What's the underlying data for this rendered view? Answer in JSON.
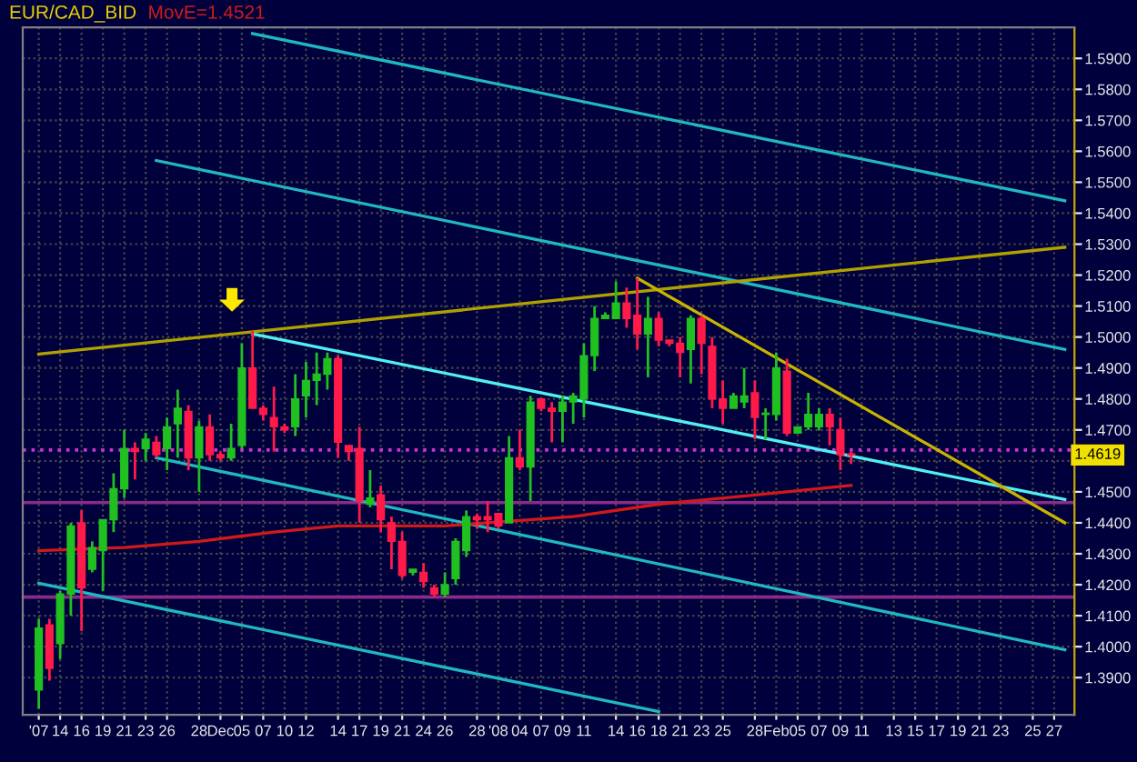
{
  "chart_data": {
    "type": "candlestick",
    "title": "EUR/CAD_BID",
    "categories": [
      "'07",
      null,
      "14",
      null,
      "16",
      null,
      "19",
      null,
      "21",
      null,
      "23",
      null,
      "26",
      null,
      null,
      "28",
      null,
      "Dec",
      null,
      "05",
      null,
      "07",
      null,
      "10",
      null,
      "12",
      null,
      null,
      "14",
      null,
      "17",
      null,
      "19",
      null,
      "21",
      null,
      "24",
      null,
      "26",
      null,
      null,
      "28",
      null,
      "'08",
      null,
      "04",
      null,
      "07",
      null,
      "09",
      null,
      "11",
      null,
      null,
      "14",
      null,
      "16",
      null,
      "18",
      null,
      "21",
      null,
      "23",
      null,
      "25",
      null,
      null,
      "28",
      null,
      "Feb",
      null,
      "05",
      null,
      "07",
      null,
      "09",
      null,
      "11",
      null,
      null,
      "13",
      null,
      "15",
      null,
      "17",
      null,
      "19",
      null,
      "21",
      null,
      "23",
      null,
      null,
      "25",
      null,
      "27",
      null
    ],
    "ylim": [
      1.378,
      1.6
    ],
    "yticks": [
      {
        "value": 1.39,
        "label": "1.3900"
      },
      {
        "value": 1.4,
        "label": "1.4000"
      },
      {
        "value": 1.41,
        "label": "1.4100"
      },
      {
        "value": 1.42,
        "label": "1.4200"
      },
      {
        "value": 1.43,
        "label": "1.4300"
      },
      {
        "value": 1.44,
        "label": "1.4400"
      },
      {
        "value": 1.45,
        "label": "1.4500"
      },
      {
        "value": 1.46,
        "label": null
      },
      {
        "value": 1.47,
        "label": "1.4700"
      },
      {
        "value": 1.48,
        "label": "1.4800"
      },
      {
        "value": 1.49,
        "label": "1.4900"
      },
      {
        "value": 1.5,
        "label": "1.5000"
      },
      {
        "value": 1.51,
        "label": "1.5100"
      },
      {
        "value": 1.52,
        "label": "1.5200"
      },
      {
        "value": 1.53,
        "label": "1.5300"
      },
      {
        "value": 1.54,
        "label": "1.5400"
      },
      {
        "value": 1.55,
        "label": "1.5500"
      },
      {
        "value": 1.56,
        "label": "1.5600"
      },
      {
        "value": 1.57,
        "label": "1.5700"
      },
      {
        "value": 1.58,
        "label": "1.5800"
      },
      {
        "value": 1.59,
        "label": "1.5900"
      }
    ],
    "grid": true,
    "ref_lines": [
      {
        "axis": "y",
        "value": 1.4635,
        "color": "#cc33cc",
        "line_style": "dotted"
      },
      {
        "axis": "y",
        "value": 1.4465,
        "color": "#8a2a8a",
        "line_style": "solid"
      },
      {
        "axis": "y",
        "value": 1.416,
        "color": "#8a2a8a",
        "line_style": "solid"
      }
    ],
    "annotations": [
      {
        "text": "1.4619",
        "y": 1.4619
      }
    ],
    "series": [
      {
        "type": "line",
        "color": "#20b8c0",
        "values": [
          null,
          null,
          null,
          null,
          null,
          null,
          null,
          null,
          null,
          null,
          null,
          null,
          null,
          null,
          null,
          null,
          null,
          null,
          null,
          null,
          1.598,
          null,
          null,
          null,
          null,
          null,
          null,
          null,
          null,
          null,
          null,
          null,
          null,
          null,
          null,
          null,
          null,
          null,
          null,
          null,
          null,
          null,
          null,
          null,
          null,
          null,
          null,
          null,
          null,
          null,
          null,
          null,
          null,
          null,
          null,
          null,
          null,
          null,
          null,
          null,
          null,
          null,
          null,
          null,
          null,
          null,
          null,
          null,
          null,
          null,
          null,
          null,
          null,
          null,
          null,
          null,
          null,
          null,
          null,
          null,
          null,
          null,
          null,
          null,
          null,
          null,
          null,
          null,
          null,
          null,
          null,
          null,
          null,
          null,
          null,
          null,
          1.544
        ]
      },
      {
        "type": "line",
        "color": "#20b8c0",
        "values": [
          null,
          null,
          null,
          null,
          null,
          null,
          null,
          null,
          null,
          null,
          null,
          1.557,
          null,
          null,
          null,
          null,
          null,
          null,
          null,
          null,
          null,
          null,
          null,
          null,
          null,
          null,
          null,
          null,
          null,
          null,
          null,
          null,
          null,
          null,
          null,
          null,
          null,
          null,
          null,
          null,
          null,
          null,
          null,
          null,
          null,
          null,
          null,
          null,
          null,
          null,
          null,
          null,
          null,
          null,
          null,
          null,
          null,
          null,
          null,
          null,
          null,
          null,
          null,
          null,
          null,
          null,
          null,
          null,
          null,
          null,
          null,
          null,
          null,
          null,
          null,
          null,
          null,
          null,
          null,
          null,
          null,
          null,
          null,
          null,
          null,
          null,
          null,
          null,
          null,
          null,
          null,
          null,
          null,
          null,
          null,
          null,
          1.496
        ]
      },
      {
        "type": "line",
        "color": "#50f0f0",
        "values": [
          null,
          null,
          null,
          null,
          null,
          null,
          null,
          null,
          null,
          null,
          null,
          null,
          null,
          null,
          null,
          null,
          null,
          null,
          null,
          null,
          1.501,
          null,
          null,
          null,
          null,
          null,
          null,
          null,
          null,
          null,
          null,
          null,
          null,
          null,
          null,
          null,
          null,
          null,
          null,
          null,
          null,
          null,
          null,
          null,
          null,
          null,
          null,
          null,
          null,
          null,
          null,
          null,
          null,
          null,
          null,
          null,
          null,
          null,
          null,
          null,
          null,
          null,
          null,
          null,
          null,
          null,
          null,
          null,
          null,
          null,
          null,
          null,
          null,
          null,
          null,
          null,
          null,
          null,
          null,
          null,
          null,
          null,
          null,
          null,
          null,
          null,
          null,
          null,
          null,
          null,
          null,
          null,
          null,
          null,
          null,
          null,
          1.4475
        ]
      },
      {
        "type": "line",
        "color": "#20b8c0",
        "values": [
          null,
          null,
          null,
          null,
          null,
          null,
          null,
          null,
          null,
          null,
          null,
          1.461,
          null,
          null,
          null,
          null,
          null,
          null,
          null,
          null,
          null,
          null,
          null,
          null,
          null,
          null,
          null,
          null,
          null,
          null,
          null,
          null,
          null,
          null,
          null,
          null,
          null,
          null,
          null,
          null,
          null,
          null,
          null,
          null,
          null,
          null,
          null,
          null,
          null,
          null,
          null,
          null,
          null,
          null,
          null,
          null,
          null,
          null,
          null,
          null,
          null,
          null,
          null,
          null,
          null,
          null,
          null,
          null,
          null,
          null,
          null,
          null,
          null,
          null,
          null,
          null,
          null,
          null,
          null,
          null,
          null,
          null,
          null,
          null,
          null,
          null,
          null,
          null,
          null,
          null,
          null,
          null,
          null,
          null,
          null,
          null,
          1.399
        ]
      },
      {
        "type": "line",
        "color": "#20b8c0",
        "values": [
          1.4205,
          null,
          null,
          null,
          null,
          null,
          null,
          null,
          null,
          null,
          null,
          null,
          null,
          null,
          null,
          null,
          null,
          null,
          null,
          null,
          null,
          null,
          null,
          null,
          null,
          null,
          null,
          null,
          null,
          null,
          null,
          null,
          null,
          null,
          null,
          null,
          null,
          null,
          null,
          null,
          null,
          null,
          null,
          null,
          null,
          null,
          null,
          null,
          null,
          null,
          null,
          null,
          null,
          null,
          null,
          null,
          null,
          null,
          1.379,
          null,
          null,
          null,
          null,
          null,
          null,
          null,
          null,
          null,
          null,
          null,
          null,
          null,
          null,
          null,
          null,
          null,
          null,
          null,
          null,
          null,
          null,
          null,
          null,
          null,
          null,
          null,
          null,
          null,
          null,
          null,
          null,
          null,
          null,
          null,
          null,
          null,
          null
        ]
      },
      {
        "type": "line",
        "color": "#b0a000",
        "values": [
          1.4945,
          null,
          null,
          null,
          null,
          null,
          null,
          null,
          null,
          null,
          null,
          null,
          null,
          null,
          null,
          null,
          null,
          null,
          null,
          null,
          null,
          null,
          null,
          null,
          null,
          null,
          null,
          null,
          null,
          null,
          null,
          null,
          null,
          null,
          null,
          null,
          null,
          null,
          null,
          null,
          null,
          null,
          null,
          null,
          null,
          null,
          null,
          null,
          null,
          null,
          null,
          null,
          null,
          null,
          null,
          null,
          null,
          null,
          null,
          null,
          null,
          null,
          null,
          null,
          null,
          null,
          null,
          null,
          null,
          null,
          null,
          null,
          null,
          null,
          null,
          null,
          null,
          null,
          null,
          null,
          null,
          null,
          null,
          null,
          null,
          null,
          null,
          null,
          null,
          null,
          null,
          null,
          null,
          null,
          null,
          null,
          1.529
        ]
      },
      {
        "type": "line",
        "color": "#c8b400",
        "values": [
          null,
          null,
          null,
          null,
          null,
          null,
          null,
          null,
          null,
          null,
          null,
          null,
          null,
          null,
          null,
          null,
          null,
          null,
          null,
          null,
          null,
          null,
          null,
          null,
          null,
          null,
          null,
          null,
          null,
          null,
          null,
          null,
          null,
          null,
          null,
          null,
          null,
          null,
          null,
          null,
          null,
          null,
          null,
          null,
          null,
          null,
          null,
          null,
          null,
          null,
          null,
          null,
          null,
          null,
          null,
          null,
          1.519,
          null,
          null,
          null,
          null,
          null,
          null,
          null,
          null,
          null,
          null,
          null,
          null,
          null,
          null,
          null,
          null,
          null,
          null,
          null,
          null,
          null,
          null,
          null,
          null,
          null,
          null,
          null,
          null,
          null,
          null,
          null,
          null,
          null,
          null,
          null,
          null,
          null,
          null,
          null,
          1.44
        ]
      },
      {
        "type": "line",
        "name": "MovE=1.4521",
        "color": "#d01a1a",
        "values": [
          1.431,
          null,
          null,
          null,
          null,
          null,
          null,
          null,
          1.432,
          null,
          null,
          null,
          null,
          null,
          null,
          1.434,
          null,
          null,
          null,
          null,
          null,
          null,
          1.437,
          null,
          null,
          null,
          null,
          null,
          1.439,
          null,
          null,
          null,
          null,
          null,
          null,
          null,
          null,
          null,
          1.439,
          null,
          null,
          null,
          null,
          null,
          null,
          null,
          null,
          null,
          null,
          null,
          1.442,
          null,
          null,
          null,
          null,
          null,
          null,
          null,
          1.446,
          null,
          null,
          null,
          null,
          null,
          null,
          null,
          null,
          1.449,
          null,
          null,
          null,
          null,
          null,
          null,
          null,
          null,
          1.4521,
          null,
          null,
          null,
          null,
          null,
          null,
          null,
          null,
          null,
          null,
          null,
          null,
          null,
          null,
          null,
          null,
          null,
          null,
          null,
          null
        ]
      },
      {
        "ohlc": [
          [
            1.386,
            1.409,
            1.38,
            1.406
          ],
          [
            1.407,
            1.409,
            1.389,
            1.393
          ],
          [
            1.401,
            1.418,
            1.396,
            1.417
          ],
          [
            1.417,
            1.44,
            1.41,
            1.439
          ],
          [
            1.44,
            1.444,
            1.405,
            1.419
          ],
          [
            1.425,
            1.434,
            1.424,
            1.432
          ],
          [
            1.431,
            1.441,
            1.418,
            1.441
          ],
          [
            1.441,
            1.456,
            1.437,
            1.451
          ],
          [
            1.451,
            1.47,
            1.448,
            1.464
          ],
          [
            1.464,
            1.466,
            1.454,
            1.463
          ],
          [
            1.464,
            1.469,
            1.46,
            1.467
          ],
          [
            1.466,
            1.468,
            1.461,
            1.462
          ],
          [
            1.464,
            1.474,
            1.457,
            1.471
          ],
          [
            1.472,
            1.483,
            1.461,
            1.477
          ],
          [
            1.476,
            1.478,
            1.457,
            1.461
          ],
          [
            1.461,
            1.473,
            1.45,
            1.471
          ],
          [
            1.471,
            1.475,
            1.46,
            1.462
          ],
          [
            1.462,
            1.463,
            1.46,
            1.461
          ],
          [
            1.461,
            1.472,
            1.46,
            1.464
          ],
          [
            1.465,
            1.498,
            1.464,
            1.49
          ],
          [
            1.49,
            1.502,
            1.477,
            1.477
          ],
          [
            1.477,
            1.478,
            1.473,
            1.475
          ],
          [
            1.474,
            1.484,
            1.463,
            1.471
          ],
          [
            1.471,
            1.472,
            1.469,
            1.47
          ],
          [
            1.471,
            1.488,
            1.468,
            1.48
          ],
          [
            1.481,
            1.492,
            1.474,
            1.486
          ],
          [
            1.486,
            1.495,
            1.478,
            1.488
          ],
          [
            1.488,
            1.495,
            1.483,
            1.493
          ],
          [
            1.493,
            1.494,
            1.461,
            1.466
          ],
          [
            1.465,
            1.465,
            1.46,
            1.463
          ],
          [
            1.464,
            1.471,
            1.44,
            1.447
          ],
          [
            1.446,
            1.457,
            1.445,
            1.448
          ],
          [
            1.449,
            1.452,
            1.437,
            1.441
          ],
          [
            1.44,
            1.442,
            1.425,
            1.434
          ],
          [
            1.434,
            1.437,
            1.422,
            1.423
          ],
          [
            1.424,
            1.425,
            1.423,
            1.425
          ],
          [
            1.424,
            1.427,
            1.419,
            1.421
          ],
          [
            1.419,
            1.42,
            1.416,
            1.417
          ],
          [
            1.417,
            1.424,
            1.416,
            1.42
          ],
          [
            1.422,
            1.435,
            1.42,
            1.434
          ],
          [
            1.431,
            1.444,
            1.429,
            1.442
          ],
          [
            1.442,
            1.443,
            1.438,
            1.441
          ],
          [
            1.442,
            1.447,
            1.437,
            1.441
          ],
          [
            1.443,
            1.443,
            1.438,
            1.439
          ],
          [
            1.44,
            1.468,
            1.44,
            1.461
          ],
          [
            1.461,
            1.47,
            1.457,
            1.458
          ],
          [
            1.458,
            1.481,
            1.447,
            1.479
          ],
          [
            1.48,
            1.48,
            1.476,
            1.477
          ],
          [
            1.477,
            1.479,
            1.466,
            1.476
          ],
          [
            1.476,
            1.481,
            1.466,
            1.479
          ],
          [
            1.479,
            1.482,
            1.472,
            1.481
          ],
          [
            1.48,
            1.498,
            1.474,
            1.494
          ],
          [
            1.494,
            1.51,
            1.489,
            1.506
          ],
          [
            1.506,
            1.508,
            1.506,
            1.507
          ],
          [
            1.506,
            1.518,
            1.506,
            1.511
          ],
          [
            1.511,
            1.516,
            1.503,
            1.506
          ],
          [
            1.507,
            1.519,
            1.496,
            1.501
          ],
          [
            1.501,
            1.513,
            1.487,
            1.506
          ],
          [
            1.506,
            1.508,
            1.497,
            1.499
          ],
          [
            1.499,
            1.499,
            1.497,
            1.498
          ],
          [
            1.498,
            1.5,
            1.487,
            1.495
          ],
          [
            1.496,
            1.507,
            1.485,
            1.506
          ],
          [
            1.506,
            1.507,
            1.488,
            1.498
          ],
          [
            1.497,
            1.5,
            1.477,
            1.48
          ],
          [
            1.48,
            1.486,
            1.472,
            1.477
          ],
          [
            1.477,
            1.482,
            1.477,
            1.481
          ],
          [
            1.479,
            1.49,
            1.477,
            1.481
          ],
          [
            1.482,
            1.486,
            1.467,
            1.474
          ],
          [
            1.475,
            1.477,
            1.467,
            1.475
          ],
          [
            1.475,
            1.495,
            1.473,
            1.49
          ],
          [
            1.489,
            1.493,
            1.468,
            1.469
          ],
          [
            1.469,
            1.471,
            1.469,
            1.471
          ],
          [
            1.471,
            1.482,
            1.47,
            1.475
          ],
          [
            1.471,
            1.477,
            1.47,
            1.475
          ],
          [
            1.475,
            1.477,
            1.465,
            1.471
          ],
          [
            1.47,
            1.474,
            1.457,
            1.462
          ],
          [
            1.462,
            1.463,
            1.459,
            1.4619
          ],
          null,
          null,
          null,
          null,
          null,
          null,
          null,
          null,
          null,
          null,
          null,
          null,
          null,
          null,
          null,
          null,
          null,
          null,
          null,
          null
        ],
        "colors": [
          "#20c020",
          "#ff1a4a",
          "#20c020",
          "#20c020",
          "#ff1a4a",
          "#20c020",
          "#20c020",
          "#20c020",
          "#20c020",
          "#ff1a4a",
          "#20c020",
          "#ff1a4a",
          "#20c020",
          "#20c020",
          "#ff1a4a",
          "#20c020",
          "#ff1a4a",
          "#ff1a4a",
          "#20c020",
          "#20c020",
          "#ff1a4a",
          "#ff1a4a",
          "#ff1a4a",
          "#ff1a4a",
          "#20c020",
          "#20c020",
          "#20c020",
          "#20c020",
          "#ff1a4a",
          "#ff1a4a",
          "#ff1a4a",
          "#20c020",
          "#ff1a4a",
          "#ff1a4a",
          "#ff1a4a",
          "#20c020",
          "#ff1a4a",
          "#ff1a4a",
          "#20c020",
          "#20c020",
          "#20c020",
          "#ff1a4a",
          "#ff1a4a",
          "#ff1a4a",
          "#20c020",
          "#ff1a4a",
          "#20c020",
          "#ff1a4a",
          "#ff1a4a",
          "#20c020",
          "#20c020",
          "#20c020",
          "#20c020",
          "#20c020",
          "#20c020",
          "#ff1a4a",
          "#ff1a4a",
          "#20c020",
          "#ff1a4a",
          "#ff1a4a",
          "#ff1a4a",
          "#20c020",
          "#ff1a4a",
          "#ff1a4a",
          "#ff1a4a",
          "#20c020",
          "#20c020",
          "#ff1a4a",
          "#20c020",
          "#20c020",
          "#ff1a4a",
          "#20c020",
          "#20c020",
          "#20c020",
          "#ff1a4a",
          "#ff1a4a",
          "#ff1a4a",
          null,
          null,
          null,
          null,
          null,
          null,
          null,
          null,
          null,
          null,
          null,
          null,
          null,
          null,
          null,
          null,
          null,
          null,
          null,
          null
        ]
      }
    ]
  }
}
